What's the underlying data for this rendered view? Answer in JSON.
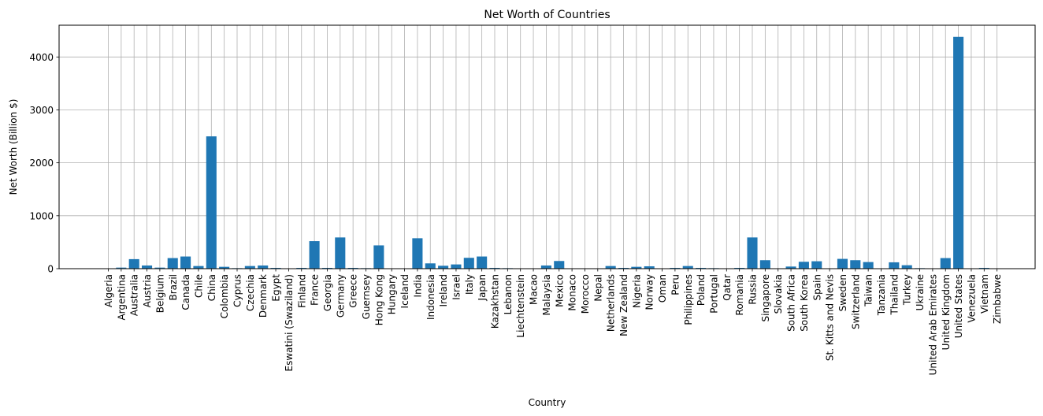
{
  "chart_data": {
    "type": "bar",
    "title": "Net Worth of Countries",
    "xlabel": "Country",
    "ylabel": "Net Worth (Billion $)",
    "ylim": [
      0,
      4600
    ],
    "yticks": [
      0,
      1000,
      2000,
      3000,
      4000
    ],
    "grid": true,
    "bar_color": "#1f77b4",
    "grid_color": "#b0b0b0",
    "categories": [
      "Algeria",
      "Argentina",
      "Australia",
      "Austria",
      "Belgium",
      "Brazil",
      "Canada",
      "Chile",
      "China",
      "Colombia",
      "Cyprus",
      "Czechia",
      "Denmark",
      "Egypt",
      "Eswatini (Swaziland)",
      "Finland",
      "France",
      "Georgia",
      "Germany",
      "Greece",
      "Guernsey",
      "Hong Kong",
      "Hungary",
      "Iceland",
      "India",
      "Indonesia",
      "Ireland",
      "Israel",
      "Italy",
      "Japan",
      "Kazakhstan",
      "Lebanon",
      "Liechtenstein",
      "Macao",
      "Malaysia",
      "Mexico",
      "Monaco",
      "Morocco",
      "Nepal",
      "Netherlands",
      "New Zealand",
      "Nigeria",
      "Norway",
      "Oman",
      "Peru",
      "Philippines",
      "Poland",
      "Portugal",
      "Qatar",
      "Romania",
      "Russia",
      "Singapore",
      "Slovakia",
      "South Africa",
      "South Korea",
      "Spain",
      "St. Kitts and Nevis",
      "Sweden",
      "Switzerland",
      "Taiwan",
      "Tanzania",
      "Thailand",
      "Turkey",
      "Ukraine",
      "United Arab Emirates",
      "United Kingdom",
      "United States",
      "Venezuela",
      "Vietnam",
      "Zimbabwe"
    ],
    "values": [
      4,
      20,
      180,
      60,
      20,
      200,
      230,
      50,
      2500,
      35,
      10,
      50,
      60,
      15,
      3,
      15,
      520,
      15,
      590,
      15,
      10,
      440,
      5,
      3,
      575,
      100,
      55,
      80,
      205,
      230,
      15,
      10,
      5,
      5,
      60,
      145,
      5,
      5,
      5,
      50,
      15,
      35,
      45,
      5,
      15,
      50,
      15,
      10,
      5,
      15,
      590,
      160,
      5,
      40,
      130,
      140,
      4,
      185,
      160,
      125,
      5,
      120,
      65,
      10,
      5,
      200,
      4380,
      5,
      15,
      5
    ]
  }
}
